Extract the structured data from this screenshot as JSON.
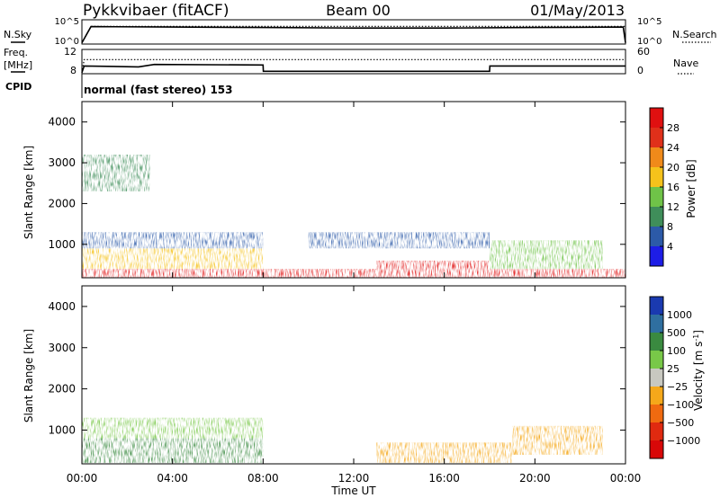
{
  "header": {
    "radar": "Pykkvibaer (fitACF)",
    "beam": "Beam 00",
    "date": "01/May/2013"
  },
  "panel_labels": {
    "nsky": "N.Sky",
    "freq_line1": "Freq.",
    "freq_line2": "[MHz]",
    "cpid": "CPID",
    "nsearch": "N.Search",
    "nave": "Nave",
    "cpid_text": "normal (fast stereo) 153"
  },
  "chart_data": [
    {
      "type": "line",
      "name": "noise",
      "left_ticks": [
        "10^5",
        "10^0"
      ],
      "right_ticks": [
        "10^5",
        "10^0"
      ],
      "series": [
        {
          "name": "N.Sky",
          "style": "solid",
          "x_hours": [
            0,
            0.4,
            4,
            8,
            12,
            16,
            20,
            23.9,
            24
          ],
          "values": [
            0.05,
            0.72,
            0.7,
            0.68,
            0.66,
            0.66,
            0.68,
            0.7,
            0.05
          ]
        },
        {
          "name": "N.Search",
          "style": "dotted",
          "x_hours": [
            0,
            0.4,
            24
          ],
          "values": [
            0.05,
            0.73,
            0.73
          ]
        }
      ]
    },
    {
      "type": "line",
      "name": "frequency-nave",
      "left_ticks": [
        "12",
        "8"
      ],
      "right_ticks": [
        "60",
        "0"
      ],
      "series": [
        {
          "name": "Freq",
          "style": "solid",
          "x_hours": [
            0,
            0.1,
            2.5,
            3.2,
            8,
            8.01,
            18,
            18.01,
            24
          ],
          "values": [
            0.05,
            0.32,
            0.28,
            0.38,
            0.36,
            0.1,
            0.1,
            0.32,
            0.32
          ]
        },
        {
          "name": "Nave",
          "style": "dotted",
          "x_hours": [
            0,
            0.1,
            24
          ],
          "values": [
            0.05,
            0.58,
            0.58
          ]
        }
      ]
    },
    {
      "type": "heatmap",
      "name": "power",
      "ylabel": "Slant Range [km]",
      "yticks": [
        1000,
        2000,
        3000,
        4000
      ],
      "ylim": [
        180,
        4500
      ],
      "xlim": [
        0,
        24
      ],
      "colorbar": {
        "label": "Power [dB]",
        "ticks": [
          "4",
          "8",
          "12",
          "16",
          "20",
          "24",
          "28"
        ],
        "colors": [
          "#1d1de6",
          "#2c5aa8",
          "#3f8e5a",
          "#6fc348",
          "#f5c21b",
          "#f08a1a",
          "#e0301a",
          "#e01010"
        ]
      },
      "regions": [
        {
          "h0": 0,
          "h1": 24,
          "r0": 180,
          "r1": 400,
          "value": 26
        },
        {
          "h0": 0,
          "h1": 8,
          "r0": 400,
          "r1": 900,
          "value": 16
        },
        {
          "h0": 0,
          "h1": 8,
          "r0": 900,
          "r1": 1300,
          "value": 5
        },
        {
          "h0": 13,
          "h1": 18,
          "r0": 300,
          "r1": 600,
          "value": 28
        },
        {
          "h0": 18,
          "h1": 23,
          "r0": 400,
          "r1": 1100,
          "value": 10
        },
        {
          "h0": 0,
          "h1": 3,
          "r0": 2300,
          "r1": 3200,
          "value": 8
        },
        {
          "h0": 10,
          "h1": 18,
          "r0": 900,
          "r1": 1300,
          "value": 4
        }
      ]
    },
    {
      "type": "heatmap",
      "name": "velocity",
      "ylabel": "Slant Range [km]",
      "yticks": [
        1000,
        2000,
        3000,
        4000
      ],
      "ylim": [
        180,
        4500
      ],
      "xlim": [
        0,
        24
      ],
      "xticks": [
        "00:00",
        "04:00",
        "08:00",
        "12:00",
        "16:00",
        "20:00",
        "00:00"
      ],
      "xlabel": "Time UT",
      "colorbar": {
        "label": "Velocity [m s",
        "label_sup": "-1",
        "label_end": "]",
        "ticks": [
          "1000",
          "500",
          "100",
          "25",
          "−25",
          "−100",
          "−500",
          "−1000"
        ],
        "colors": [
          "#1a3ab0",
          "#2f6fa0",
          "#3a8a40",
          "#78c848",
          "#c8c8c0",
          "#f5a81a",
          "#f06a10",
          "#e02a10",
          "#d80808"
        ]
      },
      "regions": [
        {
          "h0": 0,
          "h1": 8,
          "r0": 200,
          "r1": 800,
          "value": 80
        },
        {
          "h0": 0,
          "h1": 8,
          "r0": 800,
          "r1": 1300,
          "value": 0
        },
        {
          "h0": 13,
          "h1": 19,
          "r0": 200,
          "r1": 700,
          "value": -90
        },
        {
          "h0": 19,
          "h1": 23,
          "r0": 400,
          "r1": 1100,
          "value": -200
        }
      ]
    }
  ]
}
